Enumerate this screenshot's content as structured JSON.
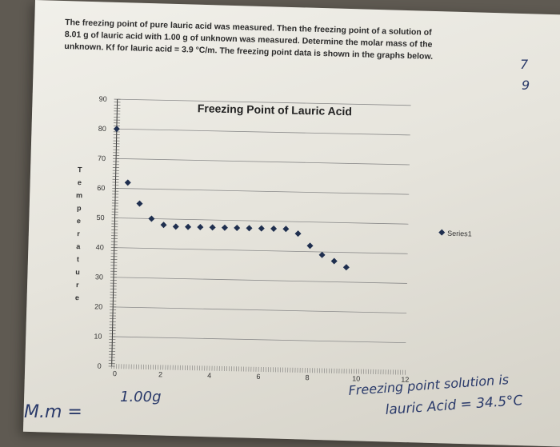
{
  "prompt_text": "The freezing point of pure lauric acid was measured. Then the freezing point of a solution of 8.01 g of lauric acid with 1.00 g of unknown was measured. Determine the molar mass of the unknown. Kf for lauric acid = 3.9 °C/m. The freezing point data is shown in the graphs below.",
  "chart_data": {
    "type": "scatter",
    "title": "Freezing Point of Lauric Acid",
    "ylabel": "Temperature",
    "ylabel_letters": [
      "T",
      "e",
      "m",
      "p",
      "e",
      "r",
      "a",
      "t",
      "u",
      "r",
      "e"
    ],
    "xlabel": "",
    "xlim": [
      0,
      12
    ],
    "ylim": [
      0,
      90
    ],
    "x_ticks": [
      0,
      2,
      4,
      6,
      8,
      10,
      12
    ],
    "y_ticks": [
      0,
      10,
      20,
      30,
      40,
      50,
      60,
      70,
      80,
      90
    ],
    "grid": "horizontal",
    "legend_position": "right",
    "marker_color": "#1f2f4f",
    "series": [
      {
        "name": "Series1",
        "x": [
          0,
          0.5,
          1,
          1.5,
          2,
          2.5,
          3,
          3.5,
          4,
          4.5,
          5,
          5.5,
          6,
          6.5,
          7,
          7.5,
          8,
          8.5,
          9,
          9.5
        ],
        "y": [
          80,
          62,
          55,
          50,
          48,
          47.5,
          47.5,
          47.5,
          47.5,
          47.5,
          47.5,
          47.5,
          47.5,
          47.5,
          47.5,
          46,
          42,
          39,
          37,
          35
        ]
      }
    ]
  },
  "handwriting": {
    "top_right_1": "7",
    "top_right_2": "9",
    "bottom_left_1": "M.m =",
    "bottom_left_2": "1.00g",
    "bottom_right_1": "Freezing point solution is",
    "bottom_right_2": "lauric Acid = 34.5°C"
  }
}
